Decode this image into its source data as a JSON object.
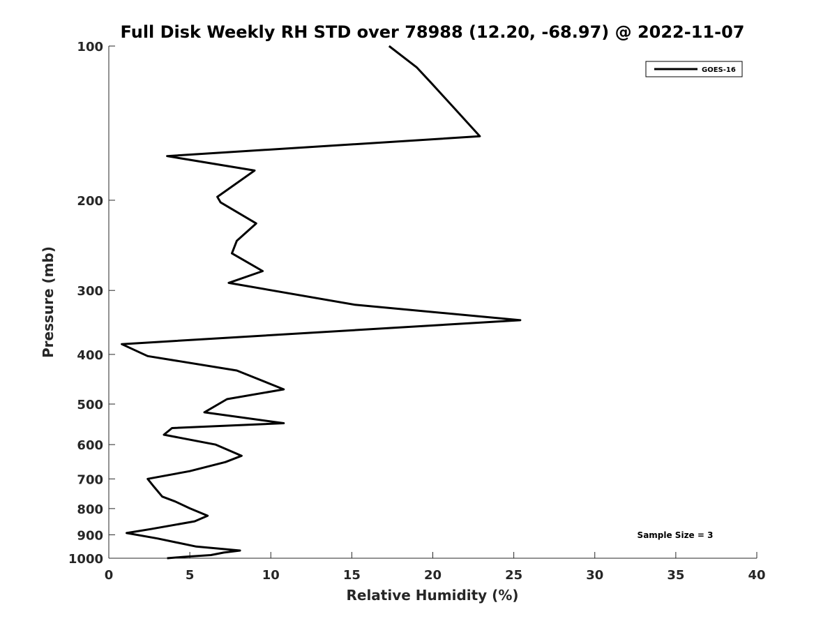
{
  "chart_data": {
    "type": "line",
    "title": "Full Disk Weekly RH STD over 78988 (12.20, -68.97) @ 2022-11-07",
    "xlabel": "Relative Humidity (%)",
    "ylabel": "Pressure (mb)",
    "xlim": [
      0,
      40
    ],
    "ylim": [
      100,
      1000
    ],
    "y_scale": "log",
    "y_reversed": true,
    "x_ticks": [
      0,
      5,
      10,
      15,
      20,
      25,
      30,
      35,
      40
    ],
    "y_ticks": [
      100,
      200,
      300,
      400,
      500,
      600,
      700,
      800,
      900,
      1000
    ],
    "grid": false,
    "legend_position": "top-right",
    "series": [
      {
        "name": "GOES-16",
        "color": "#000000",
        "x": [
          17.3,
          19.0,
          19.9,
          21.4,
          22.9,
          3.6,
          9.0,
          6.7,
          6.9,
          9.1,
          7.9,
          7.6,
          9.5,
          7.4,
          15.2,
          25.4,
          0.8,
          2.4,
          7.9,
          10.8,
          7.3,
          5.9,
          10.8,
          3.9,
          3.4,
          6.6,
          8.2,
          7.2,
          5.0,
          2.4,
          2.8,
          3.3,
          4.1,
          5.0,
          6.1,
          5.3,
          2.6,
          1.1,
          3.0,
          5.4,
          8.1,
          7.1,
          6.3,
          4.6,
          3.6
        ],
        "y": [
          100,
          110,
          118,
          133,
          150,
          164,
          175,
          197,
          202,
          222,
          240,
          254,
          275,
          290,
          320,
          343,
          382,
          403,
          430,
          468,
          489,
          519,
          545,
          557,
          574,
          600,
          631,
          649,
          676,
          700,
          726,
          758,
          775,
          799,
          826,
          847,
          877,
          893,
          915,
          949,
          966,
          975,
          986,
          994,
          1000
        ]
      }
    ],
    "annotations": [
      "Sample Size = 3"
    ]
  }
}
